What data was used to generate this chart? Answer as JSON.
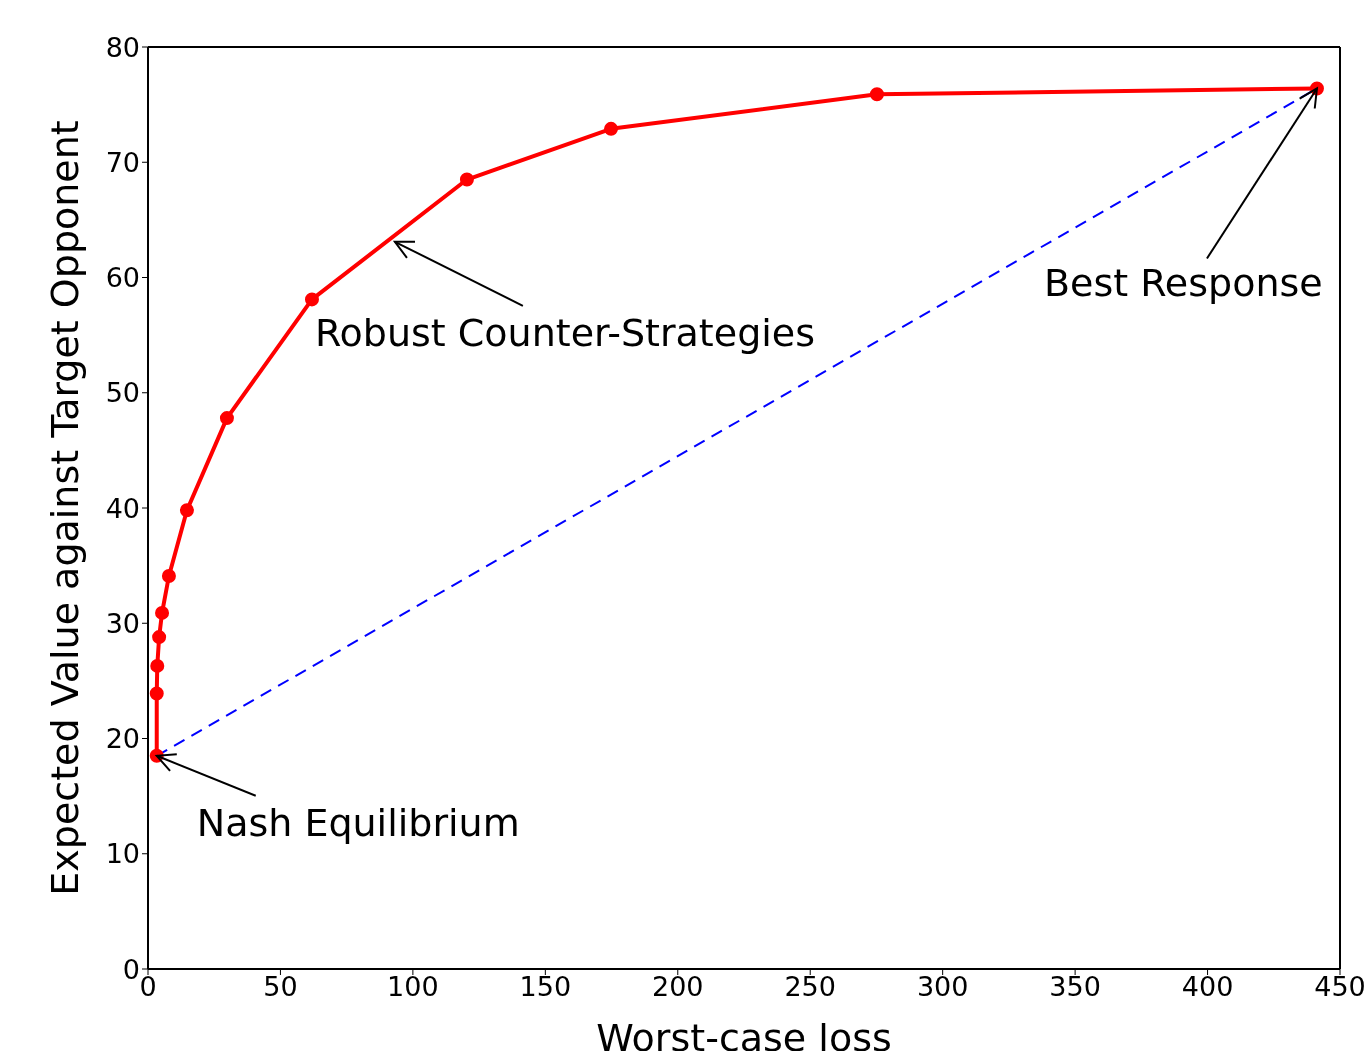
{
  "chart_data": {
    "type": "line",
    "xlabel": "Worst-case loss",
    "ylabel": "Expected Value against Target Opponent",
    "xlim": [
      0,
      450
    ],
    "xticks": [
      0,
      50,
      100,
      150,
      200,
      250,
      300,
      350,
      400,
      450
    ],
    "ylim": [
      0,
      80
    ],
    "yticks": [
      0,
      10,
      20,
      30,
      40,
      50,
      60,
      70,
      80
    ],
    "series": [
      {
        "color": "#ff0000",
        "marker": "circle",
        "line_style": "solid",
        "x": [
          3.3,
          3.3,
          3.5,
          4.2,
          5.3,
          7.9,
          14.7,
          29.8,
          61.9,
          120.4,
          174.8,
          275.2,
          441.3
        ],
        "values": [
          18.5,
          23.9,
          26.3,
          28.8,
          30.9,
          34.1,
          39.8,
          47.8,
          58.1,
          68.5,
          72.9,
          75.9,
          76.4
        ]
      },
      {
        "color": "#0000ff",
        "marker": "none",
        "line_style": "dashed",
        "x": [
          3.3,
          441.3
        ],
        "values": [
          18.5,
          76.4
        ]
      }
    ],
    "annotations": [
      {
        "text": "Robust Counter-Strategies",
        "x": 93.2,
        "y": 63.1
      },
      {
        "text": "Best Response",
        "x": 441.3,
        "y": 76.4
      },
      {
        "text": "Nash Equilibrium",
        "x": 3.3,
        "y": 18.5
      }
    ]
  }
}
